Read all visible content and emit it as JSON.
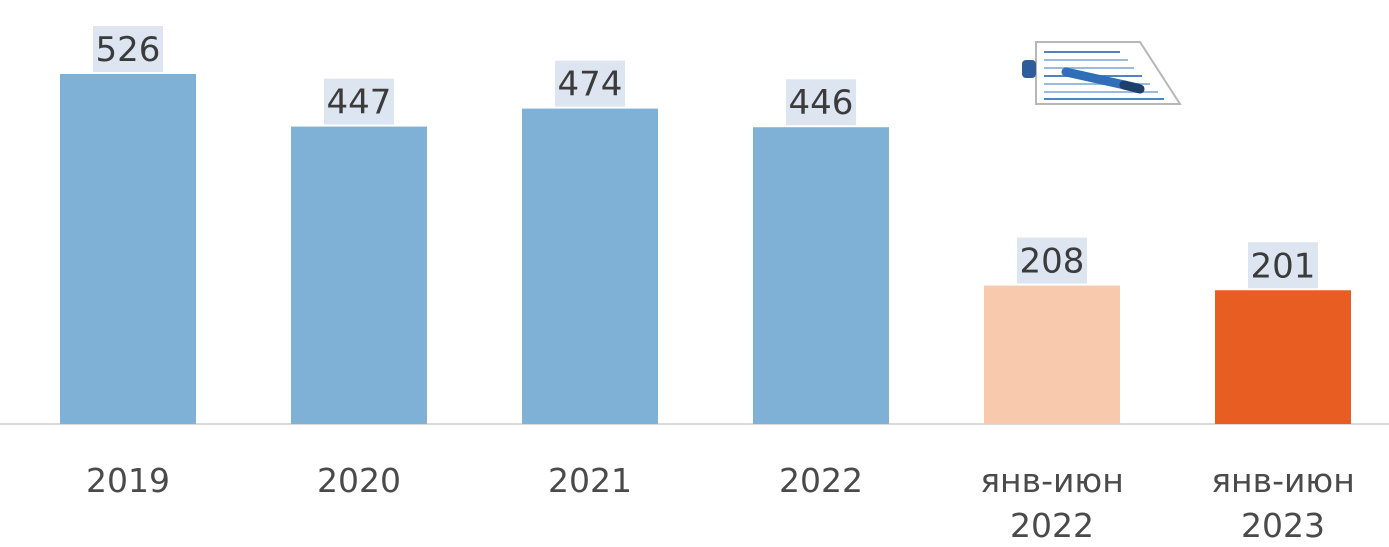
{
  "chart_data": {
    "type": "bar",
    "categories": [
      [
        "2019"
      ],
      [
        "2020"
      ],
      [
        "2021"
      ],
      [
        "2022"
      ],
      [
        "янв-июн",
        "2022"
      ],
      [
        "янв-июн",
        "2023"
      ]
    ],
    "values": [
      526,
      447,
      474,
      446,
      208,
      201
    ],
    "data_labels": [
      "526",
      "447",
      "474",
      "446",
      "208",
      "201"
    ],
    "bar_colors": [
      "#7fb0d6",
      "#7fb0d6",
      "#7fb0d6",
      "#7fb0d6",
      "#f8c9ac",
      "#e85d21"
    ],
    "ylim": [
      0,
      526
    ],
    "grid": false,
    "legend": "none",
    "title": "",
    "xlabel": "",
    "ylabel": ""
  },
  "decoration": {
    "icon": "document-with-pen-icon"
  }
}
